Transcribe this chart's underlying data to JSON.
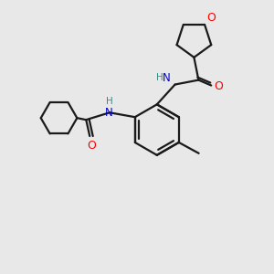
{
  "background_color": "#e8e8e8",
  "bond_color": "#1a1a1a",
  "atom_colors": {
    "O": "#ff0000",
    "N": "#0000cc",
    "H": "#3a8a8a",
    "C": "#1a1a1a"
  },
  "figsize": [
    3.0,
    3.0
  ],
  "dpi": 100
}
